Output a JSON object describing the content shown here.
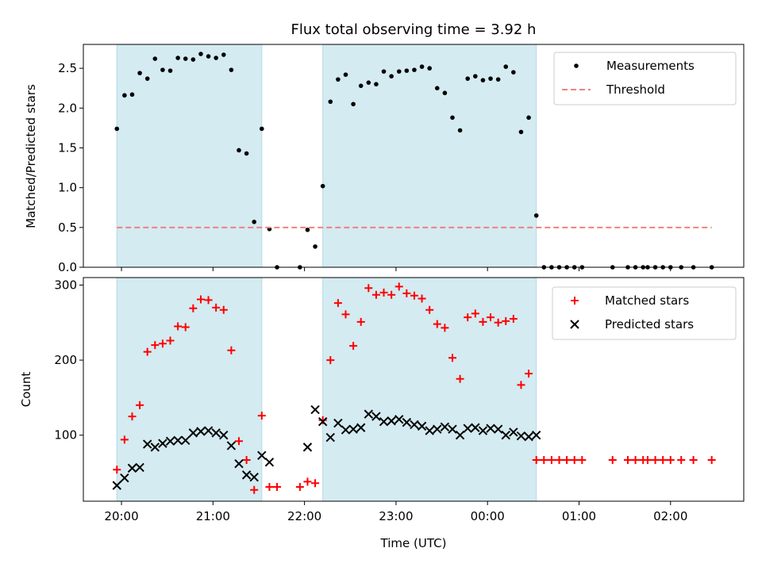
{
  "chart_data": [
    {
      "type": "scatter",
      "title": "Flux total observing time = 3.92 h",
      "xlabel": "",
      "ylabel": "Matched/Predicted stars",
      "ylim": [
        0,
        2.8
      ],
      "yticks": [
        0.0,
        0.5,
        1.0,
        1.5,
        2.0,
        2.5
      ],
      "ytick_labels": [
        "0.0",
        "0.5",
        "1.0",
        "1.5",
        "2.0",
        "2.5"
      ],
      "xlim": [
        "2023-01-01T19:35",
        "2023-01-02T02:48"
      ],
      "xticks": [
        "2023-01-01T20:00",
        "2023-01-01T21:00",
        "2023-01-01T22:00",
        "2023-01-01T23:00",
        "2023-01-02T00:00",
        "2023-01-02T01:00",
        "2023-01-02T02:00"
      ],
      "grid": false,
      "legend_position": "top-right",
      "shaded_intervals": [
        [
          "2023-01-01T19:57",
          "2023-01-01T21:32"
        ],
        [
          "2023-01-01T22:12",
          "2023-01-02T00:32"
        ]
      ],
      "shade_color": "#d4ebf1",
      "shade_edge_color": "#b3dbe6",
      "series": [
        {
          "name": "Measurements",
          "color": "#000000",
          "marker": "dot",
          "points": [
            [
              "2023-01-01T19:57",
              1.74
            ],
            [
              "2023-01-01T20:02",
              2.16
            ],
            [
              "2023-01-01T20:07",
              2.17
            ],
            [
              "2023-01-01T20:12",
              2.44
            ],
            [
              "2023-01-01T20:17",
              2.37
            ],
            [
              "2023-01-01T20:22",
              2.62
            ],
            [
              "2023-01-01T20:27",
              2.48
            ],
            [
              "2023-01-01T20:32",
              2.47
            ],
            [
              "2023-01-01T20:37",
              2.63
            ],
            [
              "2023-01-01T20:42",
              2.62
            ],
            [
              "2023-01-01T20:47",
              2.61
            ],
            [
              "2023-01-01T20:52",
              2.68
            ],
            [
              "2023-01-01T20:57",
              2.65
            ],
            [
              "2023-01-01T21:02",
              2.63
            ],
            [
              "2023-01-01T21:07",
              2.67
            ],
            [
              "2023-01-01T21:12",
              2.48
            ],
            [
              "2023-01-01T21:17",
              1.47
            ],
            [
              "2023-01-01T21:22",
              1.43
            ],
            [
              "2023-01-01T21:27",
              0.57
            ],
            [
              "2023-01-01T21:32",
              1.74
            ],
            [
              "2023-01-01T21:37",
              0.48
            ],
            [
              "2023-01-01T21:42",
              0.0
            ],
            [
              "2023-01-01T21:57",
              0.0
            ],
            [
              "2023-01-01T22:02",
              0.47
            ],
            [
              "2023-01-01T22:07",
              0.26
            ],
            [
              "2023-01-01T22:12",
              1.02
            ],
            [
              "2023-01-01T22:17",
              2.08
            ],
            [
              "2023-01-01T22:22",
              2.36
            ],
            [
              "2023-01-01T22:27",
              2.42
            ],
            [
              "2023-01-01T22:32",
              2.05
            ],
            [
              "2023-01-01T22:37",
              2.28
            ],
            [
              "2023-01-01T22:42",
              2.32
            ],
            [
              "2023-01-01T22:47",
              2.3
            ],
            [
              "2023-01-01T22:52",
              2.46
            ],
            [
              "2023-01-01T22:57",
              2.4
            ],
            [
              "2023-01-01T23:02",
              2.46
            ],
            [
              "2023-01-01T23:07",
              2.47
            ],
            [
              "2023-01-01T23:12",
              2.48
            ],
            [
              "2023-01-01T23:17",
              2.52
            ],
            [
              "2023-01-01T23:22",
              2.5
            ],
            [
              "2023-01-01T23:27",
              2.25
            ],
            [
              "2023-01-01T23:32",
              2.19
            ],
            [
              "2023-01-01T23:37",
              1.88
            ],
            [
              "2023-01-01T23:42",
              1.72
            ],
            [
              "2023-01-01T23:47",
              2.37
            ],
            [
              "2023-01-01T23:52",
              2.4
            ],
            [
              "2023-01-01T23:57",
              2.35
            ],
            [
              "2023-01-02T00:02",
              2.37
            ],
            [
              "2023-01-02T00:07",
              2.36
            ],
            [
              "2023-01-02T00:12",
              2.52
            ],
            [
              "2023-01-02T00:17",
              2.45
            ],
            [
              "2023-01-02T00:22",
              1.7
            ],
            [
              "2023-01-02T00:27",
              1.88
            ],
            [
              "2023-01-02T00:32",
              0.65
            ],
            [
              "2023-01-02T00:37",
              0.0
            ],
            [
              "2023-01-02T00:42",
              0.0
            ],
            [
              "2023-01-02T00:47",
              0.0
            ],
            [
              "2023-01-02T00:52",
              0.0
            ],
            [
              "2023-01-02T00:57",
              0.0
            ],
            [
              "2023-01-02T01:02",
              0.0
            ],
            [
              "2023-01-02T01:22",
              0.0
            ],
            [
              "2023-01-02T01:32",
              0.0
            ],
            [
              "2023-01-02T01:37",
              0.0
            ],
            [
              "2023-01-02T01:42",
              0.0
            ],
            [
              "2023-01-02T01:45",
              0.0
            ],
            [
              "2023-01-02T01:50",
              0.0
            ],
            [
              "2023-01-02T01:55",
              0.0
            ],
            [
              "2023-01-02T02:00",
              0.0
            ],
            [
              "2023-01-02T02:07",
              0.0
            ],
            [
              "2023-01-02T02:15",
              0.0
            ],
            [
              "2023-01-02T02:27",
              0.0
            ]
          ]
        },
        {
          "name": "Threshold",
          "color": "#f08080",
          "line_style": "dashed",
          "points": [
            [
              "2023-01-01T19:57",
              0.5
            ],
            [
              "2023-01-02T02:27",
              0.5
            ]
          ]
        }
      ]
    },
    {
      "type": "scatter",
      "title": "",
      "xlabel": "Time (UTC)",
      "ylabel": "Count",
      "ylim": [
        12,
        310
      ],
      "yticks": [
        100,
        200,
        300
      ],
      "ytick_labels": [
        "100",
        "200",
        "300"
      ],
      "xlim": [
        "2023-01-01T19:35",
        "2023-01-02T02:48"
      ],
      "xticks": [
        "2023-01-01T20:00",
        "2023-01-01T21:00",
        "2023-01-01T22:00",
        "2023-01-01T23:00",
        "2023-01-02T00:00",
        "2023-01-02T01:00",
        "2023-01-02T02:00"
      ],
      "xtick_labels": [
        "20:00",
        "21:00",
        "22:00",
        "23:00",
        "00:00",
        "01:00",
        "02:00"
      ],
      "grid": false,
      "legend_position": "top-right",
      "shaded_intervals": [
        [
          "2023-01-01T19:57",
          "2023-01-01T21:32"
        ],
        [
          "2023-01-01T22:12",
          "2023-01-02T00:32"
        ]
      ],
      "shade_color": "#d4ebf1",
      "shade_edge_color": "#b3dbe6",
      "series": [
        {
          "name": "Matched stars",
          "color": "#ff0000",
          "marker": "plus",
          "points": [
            [
              "2023-01-01T19:57",
              54
            ],
            [
              "2023-01-01T20:02",
              94
            ],
            [
              "2023-01-01T20:07",
              125
            ],
            [
              "2023-01-01T20:12",
              140
            ],
            [
              "2023-01-01T20:17",
              211
            ],
            [
              "2023-01-01T20:22",
              220
            ],
            [
              "2023-01-01T20:27",
              222
            ],
            [
              "2023-01-01T20:32",
              226
            ],
            [
              "2023-01-01T20:37",
              245
            ],
            [
              "2023-01-01T20:42",
              244
            ],
            [
              "2023-01-01T20:47",
              269
            ],
            [
              "2023-01-01T20:52",
              281
            ],
            [
              "2023-01-01T20:57",
              280
            ],
            [
              "2023-01-01T21:02",
              270
            ],
            [
              "2023-01-01T21:07",
              267
            ],
            [
              "2023-01-01T21:12",
              213
            ],
            [
              "2023-01-01T21:17",
              92
            ],
            [
              "2023-01-01T21:22",
              67
            ],
            [
              "2023-01-01T21:27",
              27
            ],
            [
              "2023-01-01T21:32",
              126
            ],
            [
              "2023-01-01T21:37",
              31
            ],
            [
              "2023-01-01T21:42",
              31
            ],
            [
              "2023-01-01T21:57",
              31
            ],
            [
              "2023-01-01T22:02",
              38
            ],
            [
              "2023-01-01T22:07",
              36
            ],
            [
              "2023-01-01T22:12",
              120
            ],
            [
              "2023-01-01T22:17",
              200
            ],
            [
              "2023-01-01T22:22",
              276
            ],
            [
              "2023-01-01T22:27",
              261
            ],
            [
              "2023-01-01T22:32",
              219
            ],
            [
              "2023-01-01T22:37",
              251
            ],
            [
              "2023-01-01T22:42",
              296
            ],
            [
              "2023-01-01T22:47",
              287
            ],
            [
              "2023-01-01T22:52",
              290
            ],
            [
              "2023-01-01T22:57",
              287
            ],
            [
              "2023-01-01T23:02",
              298
            ],
            [
              "2023-01-01T23:07",
              289
            ],
            [
              "2023-01-01T23:12",
              286
            ],
            [
              "2023-01-01T23:17",
              282
            ],
            [
              "2023-01-01T23:22",
              267
            ],
            [
              "2023-01-01T23:27",
              248
            ],
            [
              "2023-01-01T23:32",
              243
            ],
            [
              "2023-01-01T23:37",
              203
            ],
            [
              "2023-01-01T23:42",
              175
            ],
            [
              "2023-01-01T23:47",
              257
            ],
            [
              "2023-01-01T23:52",
              262
            ],
            [
              "2023-01-01T23:57",
              251
            ],
            [
              "2023-01-02T00:02",
              257
            ],
            [
              "2023-01-02T00:07",
              250
            ],
            [
              "2023-01-02T00:12",
              252
            ],
            [
              "2023-01-02T00:17",
              255
            ],
            [
              "2023-01-02T00:22",
              167
            ],
            [
              "2023-01-02T00:27",
              182
            ],
            [
              "2023-01-02T00:32",
              67
            ],
            [
              "2023-01-02T00:37",
              67
            ],
            [
              "2023-01-02T00:42",
              67
            ],
            [
              "2023-01-02T00:47",
              67
            ],
            [
              "2023-01-02T00:52",
              67
            ],
            [
              "2023-01-02T00:57",
              67
            ],
            [
              "2023-01-02T01:02",
              67
            ],
            [
              "2023-01-02T01:22",
              67
            ],
            [
              "2023-01-02T01:32",
              67
            ],
            [
              "2023-01-02T01:37",
              67
            ],
            [
              "2023-01-02T01:42",
              67
            ],
            [
              "2023-01-02T01:45",
              67
            ],
            [
              "2023-01-02T01:50",
              67
            ],
            [
              "2023-01-02T01:55",
              67
            ],
            [
              "2023-01-02T02:00",
              67
            ],
            [
              "2023-01-02T02:07",
              67
            ],
            [
              "2023-01-02T02:15",
              67
            ],
            [
              "2023-01-02T02:27",
              67
            ]
          ]
        },
        {
          "name": "Predicted stars",
          "color": "#000000",
          "marker": "x",
          "points": [
            [
              "2023-01-01T19:57",
              33
            ],
            [
              "2023-01-01T20:02",
              43
            ],
            [
              "2023-01-01T20:07",
              56
            ],
            [
              "2023-01-01T20:12",
              57
            ],
            [
              "2023-01-01T20:17",
              88
            ],
            [
              "2023-01-01T20:22",
              84
            ],
            [
              "2023-01-01T20:27",
              89
            ],
            [
              "2023-01-01T20:32",
              92
            ],
            [
              "2023-01-01T20:37",
              93
            ],
            [
              "2023-01-01T20:42",
              93
            ],
            [
              "2023-01-01T20:47",
              103
            ],
            [
              "2023-01-01T20:52",
              105
            ],
            [
              "2023-01-01T20:57",
              106
            ],
            [
              "2023-01-01T21:02",
              103
            ],
            [
              "2023-01-01T21:07",
              100
            ],
            [
              "2023-01-01T21:12",
              86
            ],
            [
              "2023-01-01T21:17",
              62
            ],
            [
              "2023-01-01T21:22",
              47
            ],
            [
              "2023-01-01T21:27",
              44
            ],
            [
              "2023-01-01T21:32",
              73
            ],
            [
              "2023-01-01T21:37",
              64
            ],
            [
              "2023-01-01T22:02",
              84
            ],
            [
              "2023-01-01T22:07",
              134
            ],
            [
              "2023-01-01T22:12",
              118
            ],
            [
              "2023-01-01T22:17",
              97
            ],
            [
              "2023-01-01T22:22",
              116
            ],
            [
              "2023-01-01T22:27",
              107
            ],
            [
              "2023-01-01T22:32",
              108
            ],
            [
              "2023-01-01T22:37",
              110
            ],
            [
              "2023-01-01T22:42",
              128
            ],
            [
              "2023-01-01T22:47",
              125
            ],
            [
              "2023-01-01T22:52",
              118
            ],
            [
              "2023-01-01T22:57",
              119
            ],
            [
              "2023-01-01T23:02",
              121
            ],
            [
              "2023-01-01T23:07",
              117
            ],
            [
              "2023-01-01T23:12",
              114
            ],
            [
              "2023-01-01T23:17",
              112
            ],
            [
              "2023-01-01T23:22",
              106
            ],
            [
              "2023-01-01T23:27",
              108
            ],
            [
              "2023-01-01T23:32",
              111
            ],
            [
              "2023-01-01T23:37",
              108
            ],
            [
              "2023-01-01T23:42",
              100
            ],
            [
              "2023-01-01T23:47",
              109
            ],
            [
              "2023-01-01T23:52",
              110
            ],
            [
              "2023-01-01T23:57",
              106
            ],
            [
              "2023-01-02T00:02",
              109
            ],
            [
              "2023-01-02T00:07",
              108
            ],
            [
              "2023-01-02T00:12",
              100
            ],
            [
              "2023-01-02T00:17",
              104
            ],
            [
              "2023-01-02T00:22",
              99
            ],
            [
              "2023-01-02T00:27",
              98
            ],
            [
              "2023-01-02T00:32",
              100
            ]
          ]
        }
      ]
    }
  ]
}
